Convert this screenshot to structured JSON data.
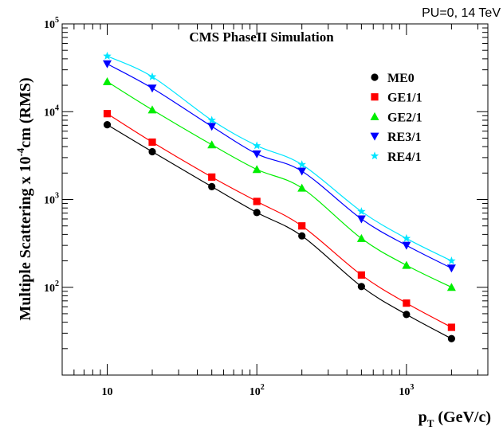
{
  "chart_data": {
    "type": "line",
    "title": "CMS PhaseII Simulation",
    "corner_label": "PU=0, 14 TeV",
    "xlabel": "p_T (GeV/c)",
    "xlabel_main": "p",
    "xlabel_sub": "T",
    "xlabel_units": " (GeV/c)",
    "ylabel": "Multiple Scattering x 10^-4 cm (RMS)",
    "ylabel_pre": "Multiple Scattering x 10",
    "ylabel_exp": "-4",
    "ylabel_post": "cm (RMS)",
    "xscale": "log",
    "yscale": "log",
    "xlim": [
      5,
      3500
    ],
    "ylim": [
      10,
      100000
    ],
    "grid": false,
    "legend_position": "top-right",
    "x_ticks": [
      {
        "value": 10,
        "base": "10",
        "exp": ""
      },
      {
        "value": 100,
        "base": "10",
        "exp": "2"
      },
      {
        "value": 1000,
        "base": "10",
        "exp": "3"
      }
    ],
    "y_ticks": [
      {
        "value": 100,
        "base": "10",
        "exp": "2"
      },
      {
        "value": 1000,
        "base": "10",
        "exp": "3"
      },
      {
        "value": 10000,
        "base": "10",
        "exp": "4"
      },
      {
        "value": 100000,
        "base": "10",
        "exp": "5"
      }
    ],
    "x": [
      10,
      20,
      50,
      100,
      200,
      500,
      1000,
      2000
    ],
    "series": [
      {
        "name": "ME0",
        "color": "#000000",
        "marker": "circle",
        "values": [
          7100,
          3500,
          1400,
          710,
          385,
          102,
          49,
          26
        ]
      },
      {
        "name": "GE1/1",
        "color": "#ff0000",
        "marker": "square",
        "values": [
          9500,
          4500,
          1800,
          950,
          500,
          138,
          66,
          35
        ]
      },
      {
        "name": "GE2/1",
        "color": "#00ee00",
        "marker": "triangle-up",
        "values": [
          22000,
          10500,
          4200,
          2200,
          1350,
          360,
          178,
          100
        ]
      },
      {
        "name": "RE3/1",
        "color": "#0000ff",
        "marker": "triangle-down",
        "values": [
          35000,
          18500,
          6800,
          3300,
          2100,
          600,
          300,
          165
        ]
      },
      {
        "name": "RE4/1",
        "color": "#00e5ff",
        "marker": "star",
        "values": [
          43000,
          25000,
          8000,
          4100,
          2500,
          730,
          360,
          200
        ]
      }
    ]
  }
}
